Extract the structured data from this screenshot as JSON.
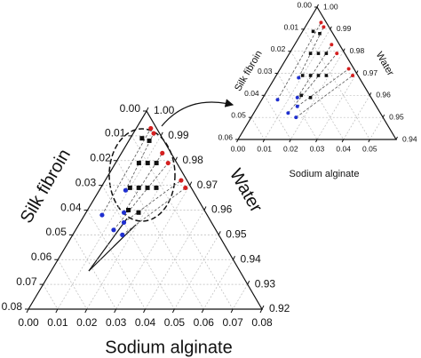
{
  "chart_data": [
    {
      "type": "ternary",
      "grid": true,
      "tie_lines": true,
      "axes": {
        "bottom": {
          "title": "Sodium alginate",
          "lim": [
            0,
            0.08
          ],
          "ticks": [
            {
              "value": 0,
              "label": "0.00"
            },
            {
              "value": 0.01,
              "label": "0.01"
            },
            {
              "value": 0.02,
              "label": "0.02"
            },
            {
              "value": 0.03,
              "label": "0.03"
            },
            {
              "value": 0.04,
              "label": "0.04"
            },
            {
              "value": 0.05,
              "label": "0.05"
            },
            {
              "value": 0.06,
              "label": "0.06"
            },
            {
              "value": 0.07,
              "label": "0.07"
            },
            {
              "value": 0.08,
              "label": "0.08"
            }
          ]
        },
        "left": {
          "title": "Silk fibroin",
          "lim": [
            0,
            0.08
          ],
          "ticks": [
            {
              "value": 0,
              "label": "0.00"
            },
            {
              "value": 0.01,
              "label": "0.01"
            },
            {
              "value": 0.02,
              "label": "0.02"
            },
            {
              "value": 0.03,
              "label": "0.03"
            },
            {
              "value": 0.04,
              "label": "0.04"
            },
            {
              "value": 0.05,
              "label": "0.05"
            },
            {
              "value": 0.06,
              "label": "0.06"
            },
            {
              "value": 0.07,
              "label": "0.07"
            },
            {
              "value": 0.08,
              "label": "0.08"
            }
          ]
        },
        "right": {
          "title": "Water",
          "lim": [
            1,
            0.92
          ],
          "ticks": [
            {
              "value": 1,
              "label": "1.00"
            },
            0.99,
            0.98,
            0.97,
            0.96,
            0.95,
            0.94,
            0.93,
            0.92
          ]
        }
      },
      "series": [
        {
          "color": "#1f2fd0",
          "marker": "circle",
          "sodium_alginate": [
            0.006,
            0.009,
            0.013,
            0.013,
            0.015,
            0.017
          ],
          "silk_fibroin": [
            0.036,
            0.023,
            0.028,
            0.035,
            0.03,
            0.033
          ]
        },
        {
          "color": "#d42020",
          "marker": "circle",
          "sodium_alginate": [
            0.005,
            0.007,
            0.014,
            0.018,
            0.026,
            0.029
          ],
          "silk_fibroin": [
            0.002,
            0.002,
            0.003,
            0.003,
            0.002,
            0.002
          ]
        },
        {
          "color": "#111111",
          "marker": "square",
          "sodium_alginate": [
            0.004,
            0.007,
            0.008,
            0.011,
            0.014,
            0.01,
            0.013,
            0.016,
            0.019,
            0.014,
            0.018
          ],
          "silk_fibroin": [
            0.007,
            0.005,
            0.013,
            0.01,
            0.007,
            0.021,
            0.018,
            0.015,
            0.012,
            0.026,
            0.023
          ]
        }
      ]
    },
    {
      "type": "ternary",
      "grid": true,
      "tie_lines": true,
      "axes": {
        "bottom": {
          "title": "Sodium alginate",
          "lim": [
            0,
            0.06
          ],
          "ticks": [
            {
              "value": 0,
              "label": "0.00"
            },
            {
              "value": 0.01,
              "label": "0.01"
            },
            {
              "value": 0.02,
              "label": "0.02"
            },
            {
              "value": 0.03,
              "label": "0.03"
            },
            {
              "value": 0.04,
              "label": "0.04"
            },
            {
              "value": 0.05,
              "label": "0.05"
            }
          ]
        },
        "left": {
          "title": "Silk fibroin",
          "lim": [
            0,
            0.06
          ],
          "ticks": [
            {
              "value": 0,
              "label": "0.00"
            },
            {
              "value": 0.01,
              "label": "0.01"
            },
            {
              "value": 0.02,
              "label": "0.02"
            },
            {
              "value": 0.03,
              "label": "0.03"
            },
            {
              "value": 0.04,
              "label": "0.04"
            },
            {
              "value": 0.05,
              "label": "0.05"
            },
            {
              "value": 0.06,
              "label": "0.06"
            }
          ]
        },
        "right": {
          "title": "Water",
          "lim": [
            1,
            0.94
          ],
          "ticks": [
            {
              "value": 1,
              "label": "1.00"
            },
            0.99,
            0.98,
            0.97,
            0.96,
            0.95,
            0.94
          ]
        }
      },
      "series": [
        {
          "color": "#1f2fd0",
          "marker": "circle",
          "sodium_alginate": [
            0.006,
            0.009,
            0.013,
            0.013,
            0.015,
            0.017
          ],
          "silk_fibroin": [
            0.036,
            0.023,
            0.028,
            0.035,
            0.03,
            0.033
          ]
        },
        {
          "color": "#d42020",
          "marker": "circle",
          "sodium_alginate": [
            0.005,
            0.007,
            0.014,
            0.018,
            0.026,
            0.029
          ],
          "silk_fibroin": [
            0.002,
            0.002,
            0.003,
            0.003,
            0.002,
            0.002
          ]
        },
        {
          "color": "#111111",
          "marker": "square",
          "sodium_alginate": [
            0.004,
            0.007,
            0.008,
            0.011,
            0.014,
            0.01,
            0.013,
            0.016,
            0.019,
            0.014,
            0.018
          ],
          "silk_fibroin": [
            0.007,
            0.005,
            0.013,
            0.01,
            0.007,
            0.021,
            0.018,
            0.015,
            0.012,
            0.026,
            0.023
          ]
        }
      ]
    }
  ]
}
